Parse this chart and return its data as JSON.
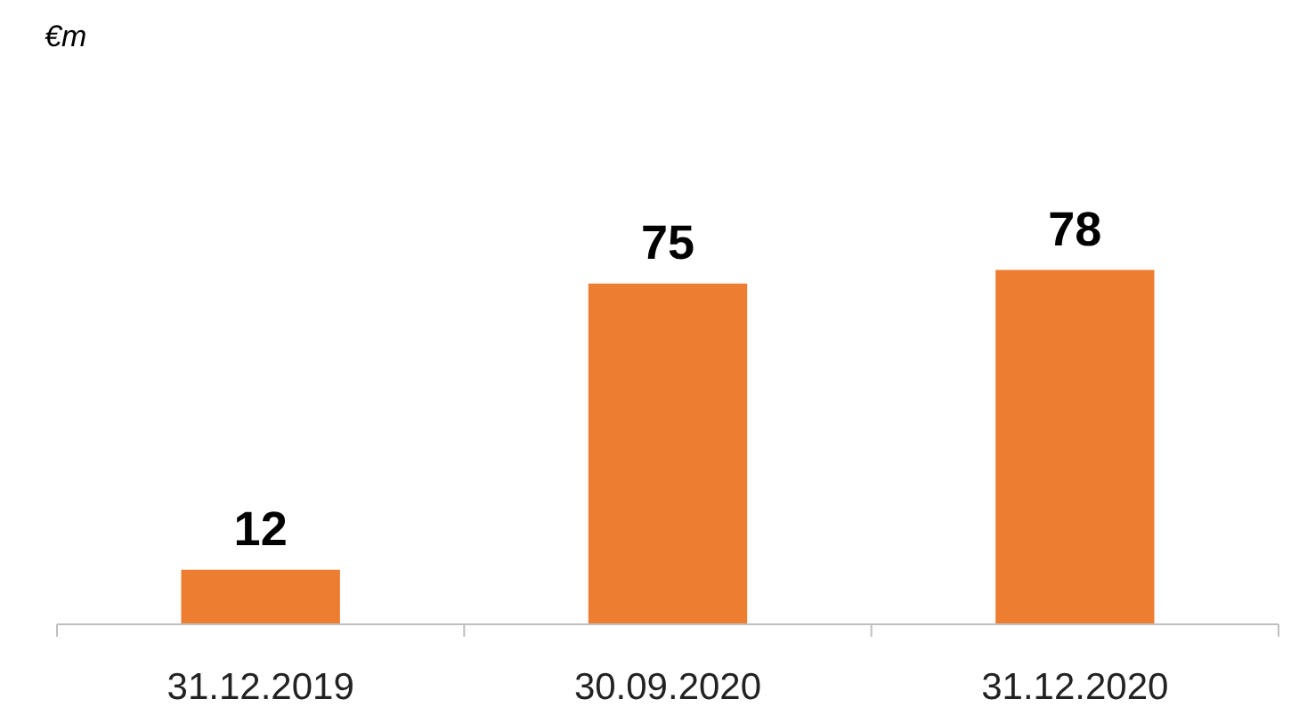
{
  "chart_data": {
    "type": "bar",
    "annotations": [
      "€m"
    ],
    "categories": [
      "31.12.2019",
      "30.09.2020",
      "31.12.2020"
    ],
    "values": [
      12,
      75,
      78
    ],
    "color": "#ed7d31",
    "data_labels": true
  }
}
